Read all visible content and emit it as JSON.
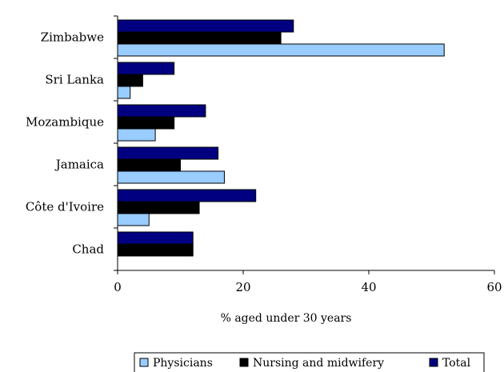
{
  "chart_data": {
    "type": "bar",
    "orientation": "horizontal",
    "categories": [
      "Zimbabwe",
      "Sri Lanka",
      "Mozambique",
      "Jamaica",
      "Côte d'Ivoire",
      "Chad"
    ],
    "series": [
      {
        "name": "Physicians",
        "color": "#99ccff",
        "values": [
          52,
          2,
          6,
          17,
          5,
          0
        ]
      },
      {
        "name": "Nursing and midwifery",
        "color": "#000000",
        "values": [
          26,
          4,
          9,
          10,
          13,
          12
        ]
      },
      {
        "name": "Total",
        "color": "#000080",
        "values": [
          28,
          9,
          14,
          16,
          22,
          12
        ]
      }
    ],
    "xlabel": "% aged under 30 years",
    "ylabel": "",
    "xlim": [
      0,
      60
    ],
    "xticks": [
      0,
      20,
      40,
      60
    ],
    "grid": false,
    "legend_position": "bottom"
  }
}
